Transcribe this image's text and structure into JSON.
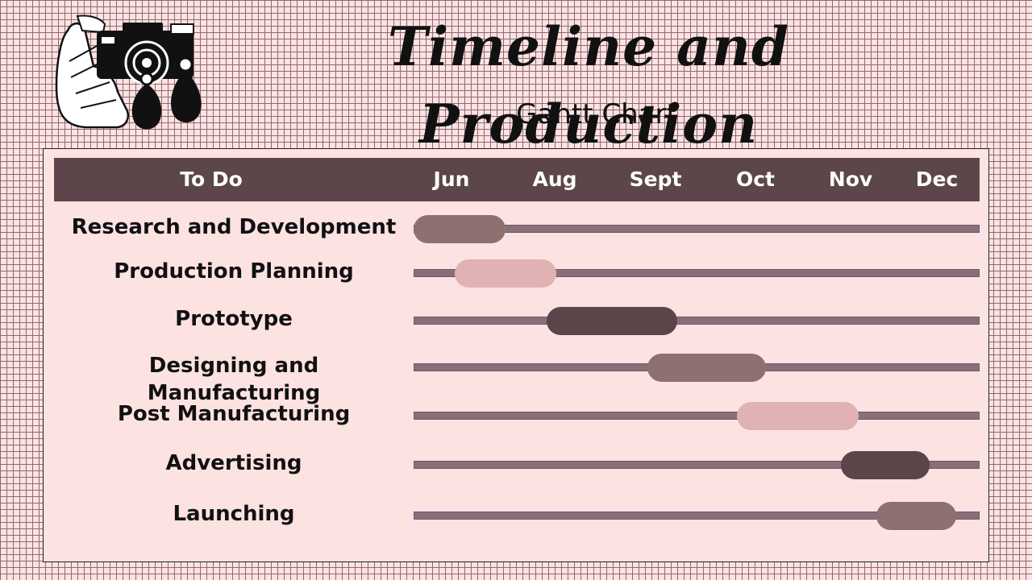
{
  "header": {
    "title": "Timeline and Production",
    "subtitle": "Gantt Chart"
  },
  "logo": {
    "icon": "camera-hand-icon"
  },
  "colors": {
    "background": "#fde2e2",
    "grid": "#8d6a70",
    "header_band": "#5c4649",
    "track": "#8d6f72",
    "mauve": "#8f7071",
    "light_pink": "#e0b2b4",
    "dark_brown": "#5a4548"
  },
  "chart_data": {
    "type": "gantt",
    "title": "Timeline and Production",
    "subtitle": "Gantt Chart",
    "column_header": "To Do",
    "months": [
      "Jun",
      "Aug",
      "Sept",
      "Oct",
      "Nov",
      "Dec"
    ],
    "tasks": [
      {
        "name": "Research and Development",
        "start": 0.0,
        "end": 0.9,
        "color": "#8f7071"
      },
      {
        "name": "Production Planning",
        "start": 0.4,
        "end": 1.4,
        "color": "#e0b2b4"
      },
      {
        "name": "Prototype",
        "start": 1.3,
        "end": 2.6,
        "color": "#5a4548"
      },
      {
        "name": "Designing and Manufacturing",
        "start": 2.3,
        "end": 3.5,
        "color": "#8f7071"
      },
      {
        "name": "Post Manufacturing",
        "start": 3.2,
        "end": 4.5,
        "color": "#e0b2b4"
      },
      {
        "name": "Advertising",
        "start": 4.3,
        "end": 5.3,
        "color": "#5a4548"
      },
      {
        "name": "Launching",
        "start": 4.7,
        "end": 5.6,
        "color": "#8f7071"
      }
    ]
  }
}
